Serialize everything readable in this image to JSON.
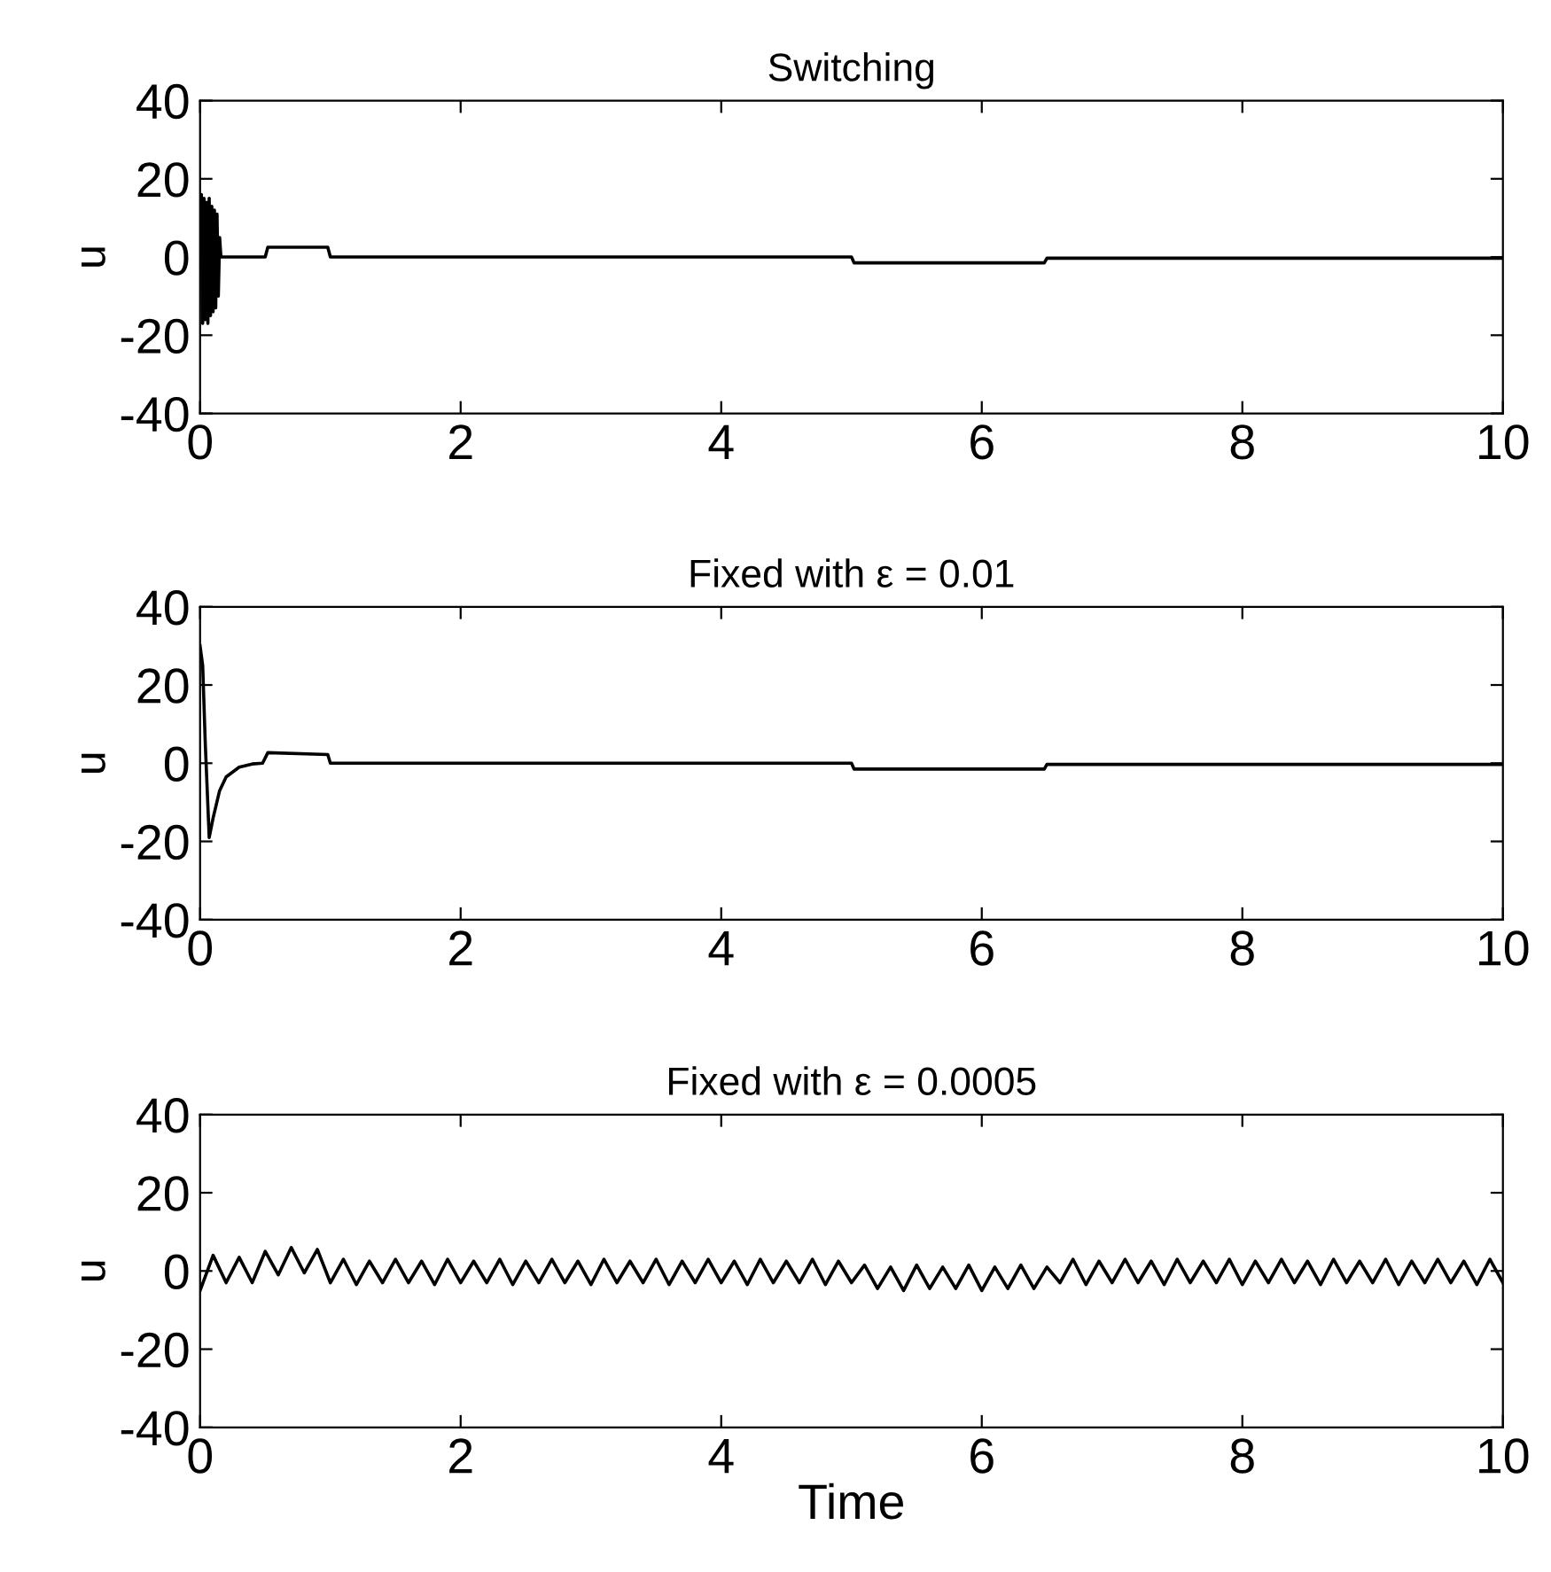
{
  "chart_data": [
    {
      "type": "line",
      "title": "Switching",
      "ylabel": "u",
      "xlim": [
        0,
        10
      ],
      "ylim": [
        -40,
        40
      ],
      "xticks": [
        0,
        2,
        4,
        6,
        8,
        10
      ],
      "yticks": [
        -40,
        -20,
        0,
        20,
        40
      ],
      "grid": false,
      "series": [
        {
          "color": "#000000",
          "x": [
            0,
            0.01,
            0.02,
            0.03,
            0.04,
            0.05,
            0.06,
            0.07,
            0.08,
            0.09,
            0.1,
            0.11,
            0.12,
            0.13,
            0.14,
            0.15,
            0.16,
            0.5,
            0.52,
            0.98,
            1.0,
            5.0,
            5.02,
            6.48,
            6.5,
            10
          ],
          "values": [
            0,
            16,
            -17,
            15,
            -16,
            14,
            -17,
            15,
            -15,
            13,
            -14,
            12,
            -13,
            11,
            -10,
            5,
            0,
            0,
            2.5,
            2.5,
            0,
            0,
            -1.5,
            -1.5,
            -0.3,
            -0.3
          ]
        }
      ]
    },
    {
      "type": "line",
      "title": "Fixed with ε = 0.01",
      "ylabel": "u",
      "xlim": [
        0,
        10
      ],
      "ylim": [
        -40,
        40
      ],
      "xticks": [
        0,
        2,
        4,
        6,
        8,
        10
      ],
      "yticks": [
        -40,
        -20,
        0,
        20,
        40
      ],
      "grid": false,
      "series": [
        {
          "color": "#000000",
          "x": [
            0,
            0.02,
            0.04,
            0.07,
            0.1,
            0.15,
            0.2,
            0.3,
            0.4,
            0.48,
            0.52,
            0.98,
            1.0,
            5.0,
            5.02,
            6.48,
            6.5,
            10
          ],
          "values": [
            30,
            25,
            5,
            -19,
            -14,
            -7,
            -3.5,
            -1,
            -0.2,
            0,
            2.7,
            2.2,
            0,
            0,
            -1.5,
            -1.5,
            -0.3,
            -0.3
          ]
        }
      ]
    },
    {
      "type": "line",
      "title": "Fixed with ε = 0.0005",
      "xlabel": "Time",
      "ylabel": "u",
      "xlim": [
        0,
        10
      ],
      "ylim": [
        -40,
        40
      ],
      "xticks": [
        0,
        2,
        4,
        6,
        8,
        10
      ],
      "yticks": [
        -40,
        -20,
        0,
        20,
        40
      ],
      "grid": false,
      "series": [
        {
          "color": "#000000",
          "x": [
            0,
            0.1,
            0.2,
            0.3,
            0.4,
            0.5,
            0.6,
            0.7,
            0.8,
            0.9,
            1.0,
            1.1,
            1.2,
            1.3,
            1.4,
            1.5,
            1.6,
            1.7,
            1.8,
            1.9,
            2.0,
            2.1,
            2.2,
            2.3,
            2.4,
            2.5,
            2.6,
            2.7,
            2.8,
            2.9,
            3.0,
            3.1,
            3.2,
            3.3,
            3.4,
            3.5,
            3.6,
            3.7,
            3.8,
            3.9,
            4.0,
            4.1,
            4.2,
            4.3,
            4.4,
            4.5,
            4.6,
            4.7,
            4.8,
            4.9,
            5.0,
            5.1,
            5.2,
            5.3,
            5.4,
            5.5,
            5.6,
            5.7,
            5.8,
            5.9,
            6.0,
            6.1,
            6.2,
            6.3,
            6.4,
            6.5,
            6.6,
            6.7,
            6.8,
            6.9,
            7.0,
            7.1,
            7.2,
            7.3,
            7.4,
            7.5,
            7.6,
            7.7,
            7.8,
            7.9,
            8.0,
            8.1,
            8.2,
            8.3,
            8.4,
            8.5,
            8.6,
            8.7,
            8.8,
            8.9,
            9.0,
            9.1,
            9.2,
            9.3,
            9.4,
            9.5,
            9.6,
            9.7,
            9.8,
            9.9,
            10.0
          ],
          "values": [
            -5,
            4,
            -3,
            3.5,
            -3,
            5,
            -1,
            6,
            -0.5,
            5.5,
            -3,
            3,
            -3.5,
            2.5,
            -3,
            3,
            -3,
            2.5,
            -3.5,
            3,
            -3,
            2.5,
            -3,
            3,
            -3.5,
            2.5,
            -3,
            3,
            -3,
            2.5,
            -3.5,
            3,
            -3,
            2.5,
            -3,
            3,
            -3.5,
            2.5,
            -3,
            3,
            -3,
            2.5,
            -3.5,
            3,
            -3,
            2.5,
            -3,
            3,
            -3.5,
            2.5,
            -3,
            1.5,
            -4.5,
            1,
            -5,
            1.5,
            -4.5,
            1,
            -4.5,
            1.5,
            -5,
            1,
            -4.5,
            1.5,
            -4.5,
            1,
            -3,
            3,
            -3.5,
            2.5,
            -3,
            3,
            -3,
            2.5,
            -3.5,
            3,
            -3,
            2.5,
            -3,
            3,
            -3.5,
            2.5,
            -3,
            3,
            -3,
            2.5,
            -3.5,
            3,
            -3,
            2.5,
            -3,
            3,
            -3.5,
            2.5,
            -3,
            3,
            -3,
            2.5,
            -3.5,
            3,
            -3
          ]
        }
      ]
    }
  ]
}
